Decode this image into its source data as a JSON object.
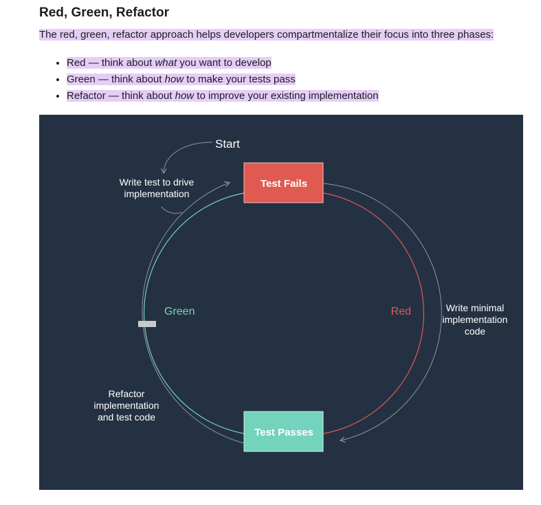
{
  "section": {
    "title": "Red, Green, Refactor",
    "intro": "The red, green, refactor approach helps developers compartmentalize their focus into three phases:"
  },
  "phases": [
    {
      "name": "Red",
      "dash": " — think about ",
      "emphasis": "what",
      "rest": " you want to develop"
    },
    {
      "name": "Green",
      "dash": " — think about ",
      "emphasis": "how",
      "rest": " to make your tests pass"
    },
    {
      "name": "Refactor",
      "dash": " — think about ",
      "emphasis": "how",
      "rest": " to improve your existing implementation"
    }
  ],
  "diagram": {
    "start_label": "Start",
    "test_fails_label": "Test Fails",
    "test_passes_label": "Test Passes",
    "green_label": "Green",
    "red_label": "Red",
    "write_test_line1": "Write test to drive",
    "write_test_line2": "implementation",
    "write_minimal_line1": "Write minimal",
    "write_minimal_line2": "implementation",
    "write_minimal_line3": "code",
    "refactor_line1": "Refactor",
    "refactor_line2": "implementation",
    "refactor_line3": "and test code",
    "colors": {
      "background": "#243142",
      "red": "#e05a52",
      "green": "#73d3bc",
      "arrow": "#8a96a3",
      "text": "#ffffff"
    }
  }
}
